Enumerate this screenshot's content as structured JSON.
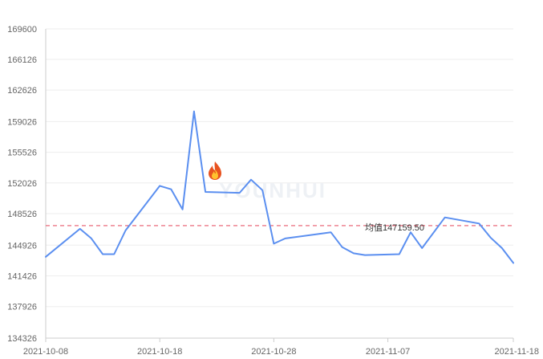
{
  "watermark": "YOUNHUI",
  "colors": {
    "line": "#5b8ff0",
    "grid": "#eeeeee",
    "axis": "#cccccc",
    "average_line": "#e8596b",
    "background": "#ffffff"
  },
  "chart_data": {
    "type": "line",
    "title": "",
    "xlabel": "",
    "ylabel": "",
    "grid": true,
    "ylim": [
      134326,
      169600
    ],
    "y_ticks": [
      "169600",
      "166126",
      "162626",
      "159026",
      "155526",
      "152026",
      "148526",
      "144926",
      "141426",
      "137926",
      "134326"
    ],
    "y_tick_values": [
      169600,
      166126,
      162626,
      159026,
      155526,
      152026,
      148526,
      144926,
      141426,
      137926,
      134326
    ],
    "x_ticks": [
      "2021-10-08",
      "2021-10-18",
      "2021-10-28",
      "2021-11-07",
      "2021-11-18"
    ],
    "x_tick_dates": [
      "2021-10-08",
      "2021-10-18",
      "2021-10-28",
      "2021-11-07",
      "2021-11-18"
    ],
    "xlim": [
      "2021-10-08",
      "2021-11-18"
    ],
    "average": {
      "label": "均值147159.50",
      "value": 147159.5
    },
    "annotation_icon": "fire-icon",
    "series": [
      {
        "points": [
          {
            "x": "2021-10-08",
            "y": 143600
          },
          {
            "x": "2021-10-11",
            "y": 146800
          },
          {
            "x": "2021-10-12",
            "y": 145700
          },
          {
            "x": "2021-10-13",
            "y": 143900
          },
          {
            "x": "2021-10-14",
            "y": 143900
          },
          {
            "x": "2021-10-15",
            "y": 146600
          },
          {
            "x": "2021-10-18",
            "y": 151700
          },
          {
            "x": "2021-10-19",
            "y": 151300
          },
          {
            "x": "2021-10-20",
            "y": 149000
          },
          {
            "x": "2021-10-21",
            "y": 160200
          },
          {
            "x": "2021-10-22",
            "y": 151000
          },
          {
            "x": "2021-10-25",
            "y": 150900
          },
          {
            "x": "2021-10-26",
            "y": 152400
          },
          {
            "x": "2021-10-27",
            "y": 151200
          },
          {
            "x": "2021-10-28",
            "y": 145100
          },
          {
            "x": "2021-10-29",
            "y": 145700
          },
          {
            "x": "2021-11-02",
            "y": 146400
          },
          {
            "x": "2021-11-03",
            "y": 144700
          },
          {
            "x": "2021-11-04",
            "y": 144000
          },
          {
            "x": "2021-11-05",
            "y": 143800
          },
          {
            "x": "2021-11-08",
            "y": 143900
          },
          {
            "x": "2021-11-09",
            "y": 146400
          },
          {
            "x": "2021-11-10",
            "y": 144600
          },
          {
            "x": "2021-11-12",
            "y": 148100
          },
          {
            "x": "2021-11-15",
            "y": 147400
          },
          {
            "x": "2021-11-16",
            "y": 145800
          },
          {
            "x": "2021-11-17",
            "y": 144600
          },
          {
            "x": "2021-11-18",
            "y": 142900
          }
        ]
      }
    ]
  }
}
